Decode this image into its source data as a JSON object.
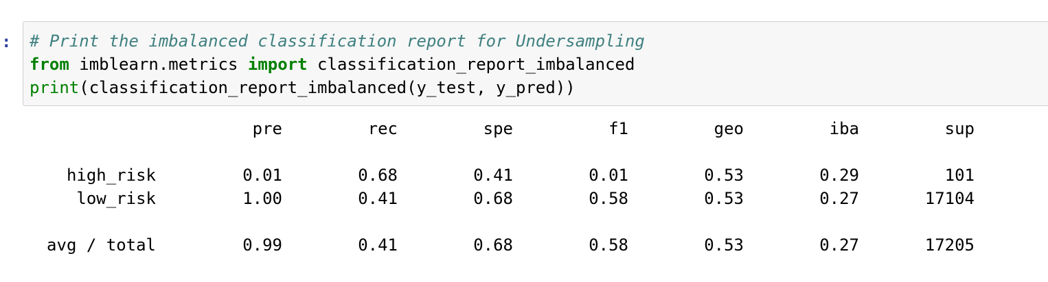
{
  "cell": {
    "prompt": ":",
    "code": {
      "line1_comment": "# Print the imbalanced classification report for Undersampling",
      "line2_kw_from": "from",
      "line2_module": " imblearn.metrics ",
      "line2_kw_import": "import",
      "line2_name": " classification_report_imbalanced",
      "line3_builtin": "print",
      "line3_rest": "(classification_report_imbalanced(y_test, y_pred))"
    },
    "output": {
      "headers": [
        "pre",
        "rec",
        "spe",
        "f1",
        "geo",
        "iba",
        "sup"
      ],
      "rows": [
        {
          "label": "high_risk",
          "values": [
            "0.01",
            "0.68",
            "0.41",
            "0.01",
            "0.53",
            "0.29",
            "101"
          ]
        },
        {
          "label": "low_risk",
          "values": [
            "1.00",
            "0.41",
            "0.68",
            "0.58",
            "0.53",
            "0.27",
            "17104"
          ]
        }
      ],
      "total": {
        "label": "avg / total",
        "values": [
          "0.99",
          "0.41",
          "0.68",
          "0.58",
          "0.53",
          "0.27",
          "17205"
        ]
      }
    }
  }
}
